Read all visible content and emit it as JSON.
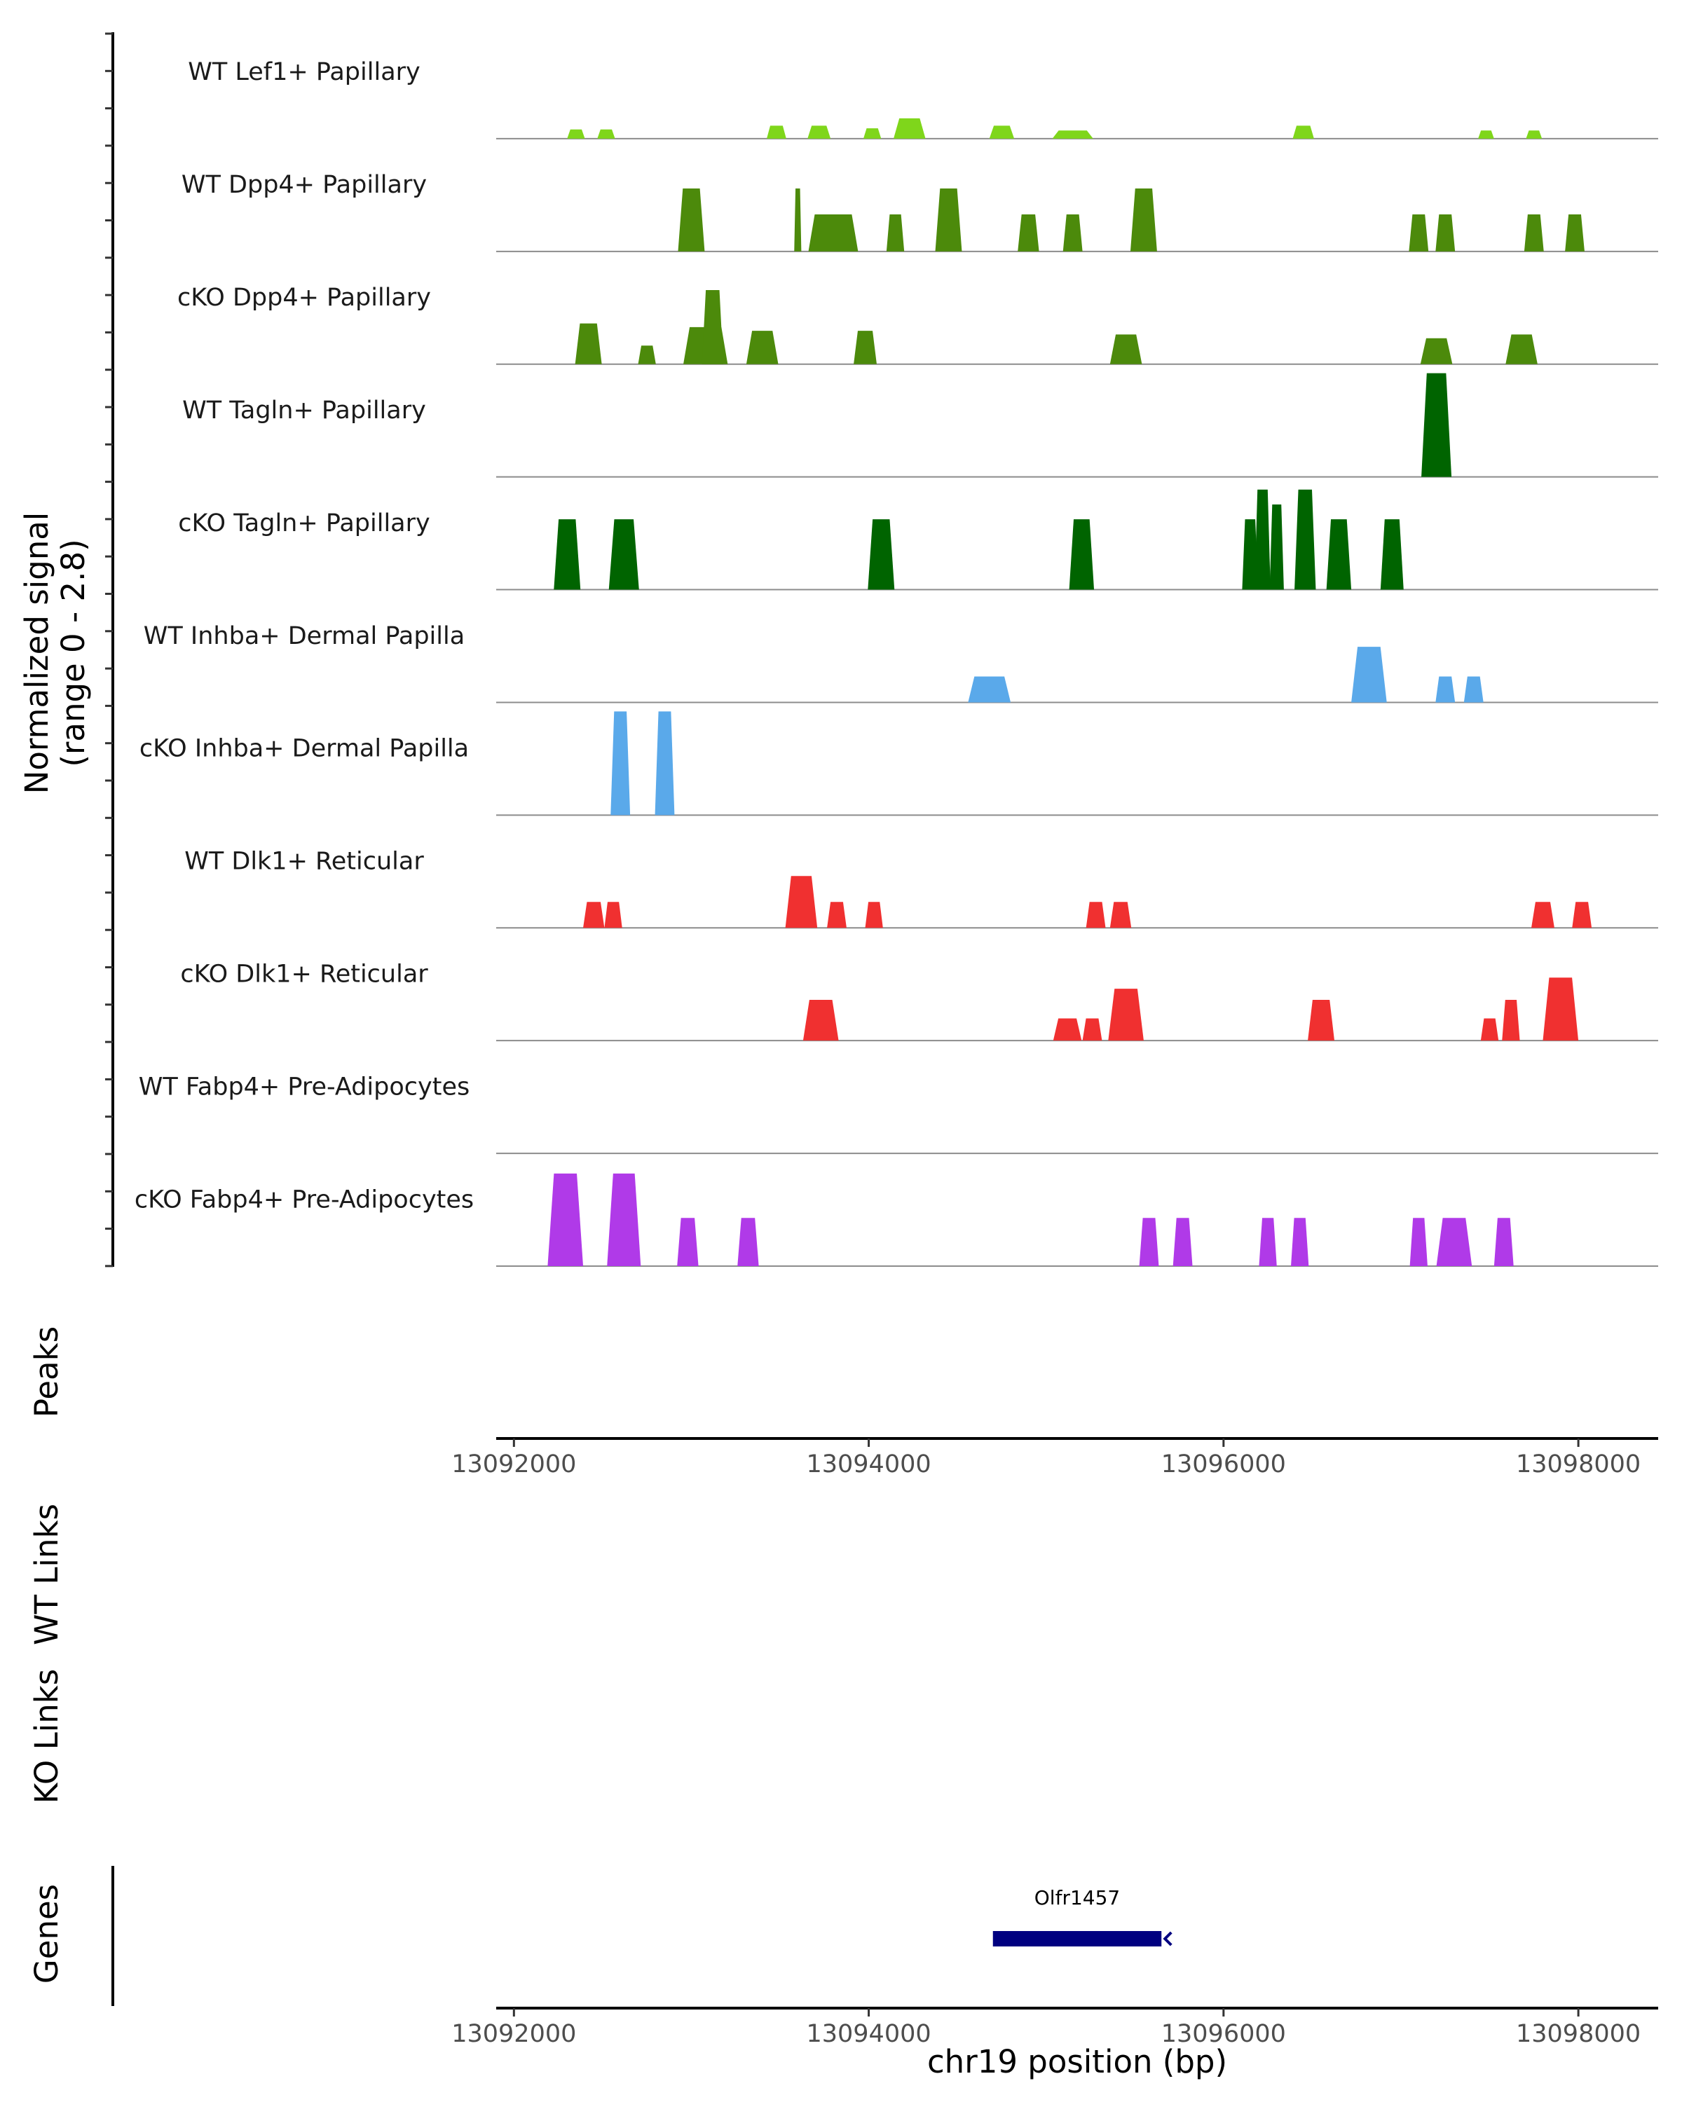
{
  "chart_data": {
    "type": "area",
    "title": "",
    "xlabel": "chr19 position (bp)",
    "signal_axis_label": [
      "Normalized signal",
      "(range 0 - 2.8)"
    ],
    "ylim": [
      0,
      2.8
    ],
    "xlim": [
      13091900,
      13098450
    ],
    "x_ticks": [
      13092000,
      13094000,
      13096000,
      13098000
    ],
    "x_tick_labels": [
      "13092000",
      "13094000",
      "13096000",
      "13098000"
    ],
    "panel_labels": {
      "peaks": "Peaks",
      "wt_links": "WT Links",
      "ko_links": "KO Links",
      "genes": "Genes"
    },
    "colors": {
      "lef1": "#7fd61b",
      "dpp4": "#4c8a0b",
      "tagln": "#006400",
      "inhba": "#5aa9ea",
      "dlk1": "#f03030",
      "fabp4": "#b03ae8",
      "gene": "#000080",
      "baseline": "#8c8c8c"
    },
    "series": [
      {
        "name": "WT Lef1+ Papillary",
        "color_key": "lef1",
        "peaks": [
          [
            13092350,
            0.25,
            100
          ],
          [
            13092520,
            0.25,
            100
          ],
          [
            13093480,
            0.35,
            110
          ],
          [
            13093720,
            0.35,
            130
          ],
          [
            13094020,
            0.28,
            100
          ],
          [
            13094230,
            0.55,
            180
          ],
          [
            13094750,
            0.35,
            140
          ],
          [
            13095150,
            0.22,
            230
          ],
          [
            13096450,
            0.35,
            120
          ],
          [
            13097480,
            0.22,
            90
          ],
          [
            13097750,
            0.22,
            90
          ]
        ]
      },
      {
        "name": "WT Dpp4+ Papillary",
        "color_key": "dpp4",
        "peaks": [
          [
            13093000,
            1.7,
            150
          ],
          [
            13093600,
            1.7,
            40
          ],
          [
            13093800,
            1.0,
            280
          ],
          [
            13094150,
            1.0,
            100
          ],
          [
            13094450,
            1.7,
            150
          ],
          [
            13094900,
            1.0,
            120
          ],
          [
            13095150,
            1.0,
            110
          ],
          [
            13095550,
            1.7,
            150
          ],
          [
            13097100,
            1.0,
            110
          ],
          [
            13097250,
            1.0,
            110
          ],
          [
            13097750,
            1.0,
            110
          ],
          [
            13097980,
            1.0,
            110
          ]
        ]
      },
      {
        "name": "cKO Dpp4+ Papillary",
        "color_key": "dpp4",
        "peaks": [
          [
            13092420,
            1.1,
            150
          ],
          [
            13092750,
            0.5,
            100
          ],
          [
            13093080,
            1.0,
            250
          ],
          [
            13093120,
            2.0,
            120
          ],
          [
            13093400,
            0.9,
            180
          ],
          [
            13093980,
            0.9,
            130
          ],
          [
            13095450,
            0.8,
            180
          ],
          [
            13097200,
            0.7,
            180
          ],
          [
            13097680,
            0.8,
            180
          ]
        ]
      },
      {
        "name": "WT Tagln+ Papillary",
        "color_key": "tagln",
        "peaks": [
          [
            13097200,
            2.8,
            170
          ]
        ]
      },
      {
        "name": "cKO Tagln+ Papillary",
        "color_key": "tagln",
        "peaks": [
          [
            13092300,
            1.9,
            150
          ],
          [
            13092620,
            1.9,
            170
          ],
          [
            13094070,
            1.9,
            150
          ],
          [
            13095200,
            1.9,
            140
          ],
          [
            13096150,
            1.9,
            90
          ],
          [
            13096220,
            2.7,
            90
          ],
          [
            13096300,
            2.3,
            80
          ],
          [
            13096460,
            2.7,
            120
          ],
          [
            13096650,
            1.9,
            140
          ],
          [
            13096950,
            1.9,
            130
          ]
        ]
      },
      {
        "name": "WT Inhba+ Dermal Papilla",
        "color_key": "inhba",
        "peaks": [
          [
            13094680,
            0.7,
            240
          ],
          [
            13096820,
            1.5,
            200
          ],
          [
            13097250,
            0.7,
            110
          ],
          [
            13097410,
            0.7,
            110
          ]
        ]
      },
      {
        "name": "cKO Inhba+ Dermal Papilla",
        "color_key": "inhba",
        "peaks": [
          [
            13092600,
            2.8,
            110
          ],
          [
            13092850,
            2.8,
            110
          ]
        ]
      },
      {
        "name": "WT Dlk1+ Reticular",
        "color_key": "dlk1",
        "peaks": [
          [
            13092450,
            0.7,
            120
          ],
          [
            13092560,
            0.7,
            100
          ],
          [
            13093620,
            1.4,
            180
          ],
          [
            13093820,
            0.7,
            110
          ],
          [
            13094030,
            0.7,
            100
          ],
          [
            13095280,
            0.7,
            110
          ],
          [
            13095420,
            0.7,
            120
          ],
          [
            13097800,
            0.7,
            130
          ],
          [
            13098020,
            0.7,
            110
          ]
        ]
      },
      {
        "name": "cKO Dlk1+ Reticular",
        "color_key": "dlk1",
        "peaks": [
          [
            13093730,
            1.1,
            200
          ],
          [
            13095120,
            0.6,
            160
          ],
          [
            13095260,
            0.6,
            110
          ],
          [
            13095450,
            1.4,
            200
          ],
          [
            13096550,
            1.1,
            150
          ],
          [
            13097500,
            0.6,
            100
          ],
          [
            13097620,
            1.1,
            100
          ],
          [
            13097900,
            1.7,
            200
          ]
        ]
      },
      {
        "name": "WT Fabp4+ Pre-Adipocytes",
        "color_key": "fabp4",
        "peaks": []
      },
      {
        "name": "cKO Fabp4+ Pre-Adipocytes",
        "color_key": "fabp4",
        "peaks": [
          [
            13092290,
            2.5,
            200
          ],
          [
            13092620,
            2.5,
            190
          ],
          [
            13092980,
            1.3,
            120
          ],
          [
            13093320,
            1.3,
            120
          ],
          [
            13095580,
            1.3,
            110
          ],
          [
            13095770,
            1.3,
            110
          ],
          [
            13096250,
            1.3,
            100
          ],
          [
            13096430,
            1.3,
            100
          ],
          [
            13097100,
            1.3,
            100
          ],
          [
            13097300,
            1.3,
            200
          ],
          [
            13097580,
            1.3,
            110
          ]
        ]
      }
    ],
    "genes": [
      {
        "name": "Olfr1457",
        "start": 13094700,
        "end": 13095650,
        "strand": "-"
      }
    ]
  }
}
